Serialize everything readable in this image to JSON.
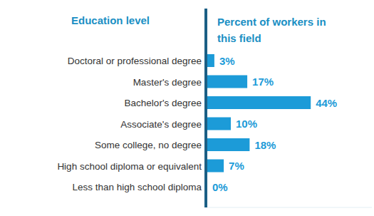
{
  "chart_data": {
    "type": "bar",
    "orientation": "horizontal",
    "y_label": "Education level",
    "x_label": "Percent of workers in this field",
    "categories": [
      "Doctoral or professional degree",
      "Master's degree",
      "Bachelor's degree",
      "Associate's degree",
      "Some college, no degree",
      "High school diploma or equivalent",
      "Less than high school diploma"
    ],
    "values": [
      3,
      17,
      44,
      10,
      18,
      7,
      0
    ],
    "value_labels": [
      "3%",
      "17%",
      "44%",
      "10%",
      "18%",
      "7%",
      "0%"
    ],
    "color": "#1c9bd8",
    "xlim": [
      0,
      70
    ],
    "data_labels": true,
    "tick_labels": "y",
    "grid": false
  }
}
